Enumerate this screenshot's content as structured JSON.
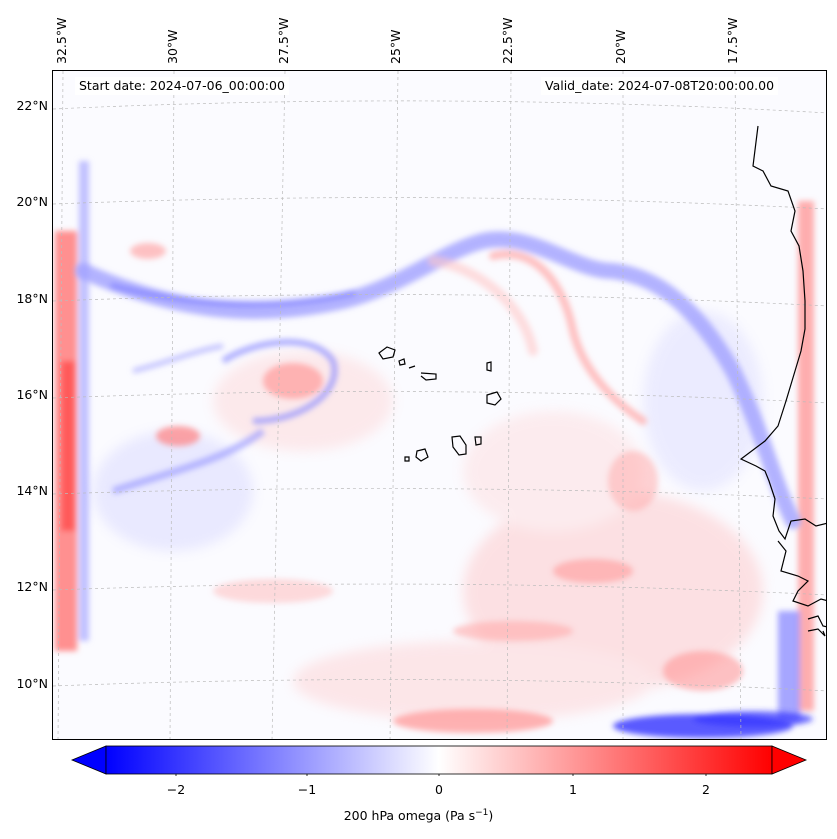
{
  "header": {
    "start_date": "Start date: 2024-07-06_00:00:00",
    "valid_date": "Valid_date: 2024-07-08T20:00:00.00"
  },
  "axes": {
    "lon_labels": [
      "32.5°W",
      "30°W",
      "27.5°W",
      "25°W",
      "22.5°W",
      "20°W",
      "17.5°W"
    ],
    "lat_labels": [
      "22°N",
      "20°N",
      "18°N",
      "16°N",
      "14°N",
      "12°N",
      "10°N"
    ],
    "lon_range": [
      -33.0,
      -15.0
    ],
    "lat_range": [
      8.9,
      22.8
    ]
  },
  "colorbar": {
    "ticks": [
      "−2",
      "−1",
      "0",
      "1",
      "2"
    ],
    "tick_values": [
      -2,
      -1,
      0,
      1,
      2
    ],
    "range": [
      -2.5,
      2.5
    ],
    "label": "200 hPa omega (Pa s",
    "label_sup": "−1",
    "label_close": ")",
    "negative_color": "#0000ff",
    "zero_color": "#ffffff",
    "positive_color": "#ff0000"
  },
  "map_colors": {
    "ascent": "#6b6bff",
    "descent": "#ff6b6b",
    "coast": "#000000",
    "grid": "#bbbbbb"
  }
}
